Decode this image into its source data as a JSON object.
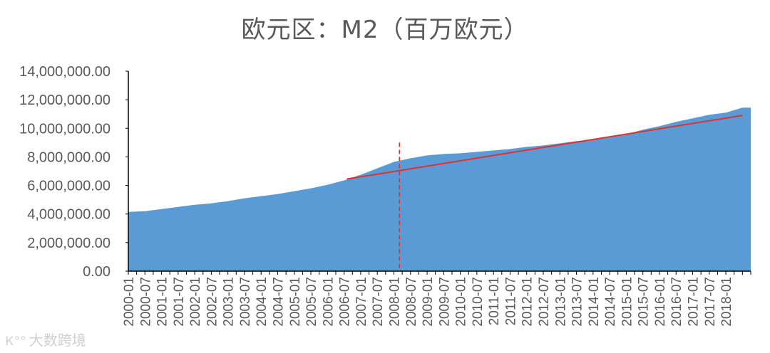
{
  "chart_data": {
    "type": "area",
    "title": "欧元区：M2（百万欧元）",
    "ylim": [
      0,
      14000000
    ],
    "y_ticks": [
      "0.00",
      "2,000,000.00",
      "4,000,000.00",
      "6,000,000.00",
      "8,000,000.00",
      "10,000,000.00",
      "12,000,000.00",
      "14,000,000.00"
    ],
    "x_tick_labels": [
      "2000-01",
      "2000-07",
      "2001-01",
      "2001-07",
      "2002-01",
      "2002-07",
      "2003-01",
      "2003-07",
      "2004-01",
      "2004-07",
      "2005-01",
      "2005-07",
      "2006-01",
      "2006-07",
      "2007-01",
      "2007-07",
      "2008-01",
      "2008-07",
      "2009-01",
      "2009-07",
      "2010-01",
      "2010-07",
      "2011-01",
      "2011-07",
      "2012-01",
      "2012-07",
      "2013-01",
      "2013-07",
      "2014-01",
      "2014-07",
      "2015-01",
      "2015-07",
      "2016-01",
      "2016-07",
      "2017-01",
      "2017-07",
      "2018-01"
    ],
    "grid": false,
    "legend": "none",
    "series": [
      {
        "type": "area",
        "color": "#5b9bd5",
        "x": [
          "2000-01",
          "2000-07",
          "2001-01",
          "2001-07",
          "2002-01",
          "2002-07",
          "2003-01",
          "2003-07",
          "2004-01",
          "2004-07",
          "2005-01",
          "2005-07",
          "2006-01",
          "2006-07",
          "2007-01",
          "2007-07",
          "2008-01",
          "2008-07",
          "2009-01",
          "2009-07",
          "2010-01",
          "2010-07",
          "2011-01",
          "2011-07",
          "2012-01",
          "2012-07",
          "2013-01",
          "2013-07",
          "2014-01",
          "2014-07",
          "2015-01",
          "2015-07",
          "2016-01",
          "2016-07",
          "2017-01",
          "2017-07",
          "2018-01",
          "2018-07"
        ],
        "values": [
          4150000,
          4200000,
          4350000,
          4500000,
          4650000,
          4750000,
          4900000,
          5100000,
          5250000,
          5400000,
          5600000,
          5800000,
          6050000,
          6350000,
          6750000,
          7200000,
          7650000,
          7900000,
          8100000,
          8200000,
          8250000,
          8350000,
          8450000,
          8550000,
          8700000,
          8800000,
          8950000,
          9100000,
          9200000,
          9350000,
          9600000,
          9900000,
          10150000,
          10450000,
          10700000,
          10950000,
          11100000,
          11450000
        ]
      }
    ],
    "annotations": [
      {
        "type": "trend_line",
        "color": "#e03030",
        "x_start": "2006-08",
        "y_start": 6450000,
        "x_end": "2018-07",
        "y_end": 10900000
      },
      {
        "type": "vertical_dashed_line",
        "color": "#e03030",
        "x": "2008-03",
        "y_top": 9000000
      }
    ]
  },
  "watermark": {
    "logo": "Ꮶ°°",
    "text": "大数跨境"
  }
}
